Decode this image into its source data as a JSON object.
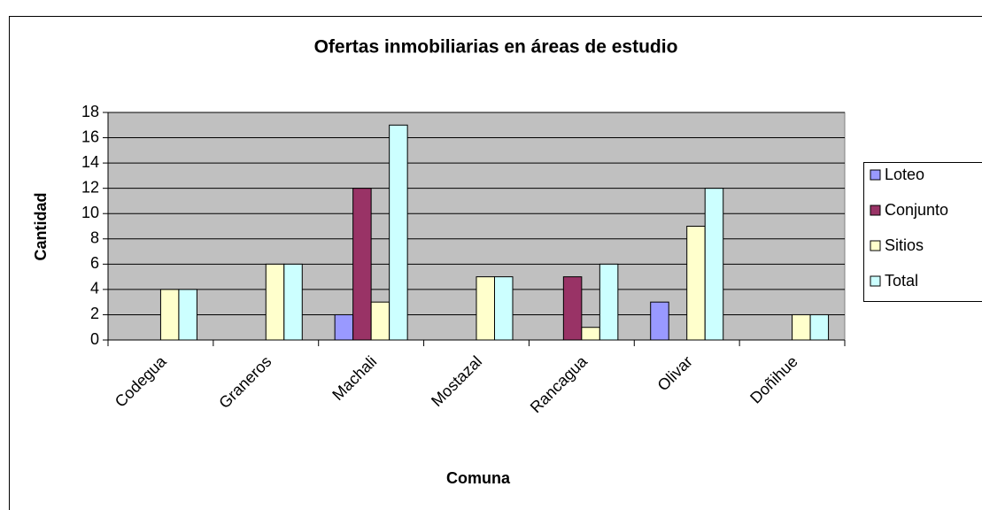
{
  "chart_data": {
    "type": "bar",
    "title": "Ofertas inmobiliarias en áreas de estudio",
    "x_label": "Comuna",
    "y_label": "Cantidad",
    "categories": [
      "Codegua",
      "Graneros",
      "Machali",
      "Mostazal",
      "Rancagua",
      "Olivar",
      "Doñihue"
    ],
    "series": [
      {
        "name": "Loteo",
        "color": "#9999ff",
        "values": [
          null,
          null,
          2,
          null,
          null,
          3,
          null
        ]
      },
      {
        "name": "Conjunto",
        "color": "#993366",
        "values": [
          null,
          null,
          12,
          null,
          5,
          null,
          null
        ]
      },
      {
        "name": "Sitios",
        "color": "#ffffcc",
        "values": [
          4,
          6,
          3,
          5,
          1,
          9,
          2
        ]
      },
      {
        "name": "Total",
        "color": "#ccffff",
        "values": [
          4,
          6,
          17,
          5,
          6,
          12,
          2
        ]
      }
    ],
    "ylim": [
      0,
      18
    ],
    "yticks": [
      0,
      2,
      4,
      6,
      8,
      10,
      12,
      14,
      16,
      18
    ],
    "grid": true,
    "legend": "right"
  }
}
